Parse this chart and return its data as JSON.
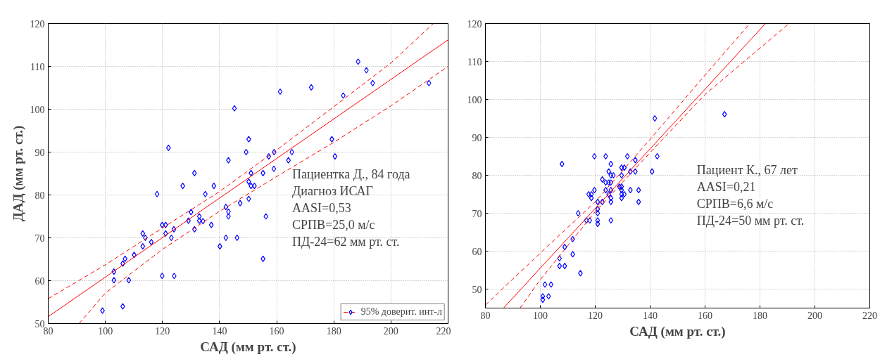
{
  "chart_data": [
    {
      "type": "scatter",
      "xlabel": "САД (мм рт. ст.)",
      "ylabel": "ДАД (мм рт. ст.)",
      "xlim": [
        80,
        220
      ],
      "xticks": [
        80,
        100,
        120,
        140,
        160,
        180,
        200,
        220
      ],
      "ylim": [
        50,
        120
      ],
      "yticks": [
        50,
        60,
        70,
        80,
        90,
        100,
        110,
        120
      ],
      "grid": true,
      "legend": "bottom",
      "marker": "diamond",
      "annotations": [
        "Пациентка Д., 84 года",
        "Диагноз ИСАГ",
        "AASI=0,53",
        "СРПВ=25,0 м/с",
        "ПД-24=62 мм рт. ст."
      ],
      "series": [
        {
          "color": "#0000ff",
          "x": [
            145.2,
            150.2,
            149.3,
            143.1,
            122.1,
            151.0,
            150.2,
            151.0,
            131.2,
            127.1,
            138.0,
            118.1,
            135.0,
            150.2,
            147.2,
            142.2,
            143.1,
            143.1,
            130.0,
            132.9,
            129.1,
            132.9,
            134.2,
            137.1,
            131.2,
            119.9,
            121.1,
            121.1,
            124.0,
            123.1,
            113.1,
            114.0,
            116.1,
            113.1,
            110.1,
            106.9,
            106.1,
            103.0,
            103.0,
            108.2,
            119.9,
            124.1,
            106.1,
            99.0,
            142.2,
            146.1,
            140.1,
            188.5,
            191.4,
            193.6,
            213.3,
            161.2,
            172.1,
            183.3,
            179.3,
            180.4,
            157.2,
            159.1,
            165.3,
            164.1,
            155.2,
            159.0,
            152.2,
            156.2,
            155.2
          ],
          "values": [
            100.2,
            93.0,
            90.0,
            88.1,
            91.0,
            85.1,
            83.1,
            82.1,
            85.1,
            82.1,
            82.1,
            80.2,
            80.2,
            79.1,
            78.1,
            77.2,
            76.1,
            75.0,
            76.0,
            75.0,
            74.0,
            74.0,
            73.9,
            73.0,
            72.0,
            73.0,
            73.0,
            71.0,
            72.0,
            70.0,
            71.0,
            70.0,
            69.0,
            68.0,
            66.0,
            65.1,
            64.0,
            62.1,
            60.1,
            60.1,
            61.1,
            61.1,
            54.0,
            53.0,
            70.0,
            70.0,
            68.0,
            111.1,
            109.1,
            106.1,
            106.1,
            104.1,
            105.1,
            103.2,
            93.0,
            89.0,
            89.0,
            90.0,
            90.0,
            88.1,
            85.1,
            86.1,
            82.1,
            75.0,
            65.1
          ]
        },
        {
          "type": "line",
          "color": "#ff0000",
          "line_style": "solid",
          "marker": "none",
          "x": [
            80,
            220
          ],
          "values": [
            51.6,
            116.2
          ]
        },
        {
          "type": "line",
          "name": "95% доверит. инт-л",
          "color": "#ff0000",
          "line_style": "dashed",
          "marker": "none",
          "x": [
            80,
            100,
            120,
            140,
            160,
            180,
            200,
            214.8
          ],
          "values": [
            55.8,
            63.7,
            72.3,
            80.8,
            90.5,
            100.6,
            110.8,
            120
          ]
        },
        {
          "type": "line",
          "color": "#ff0000",
          "line_style": "dashed",
          "marker": "none",
          "x": [
            90.8,
            100,
            120,
            140,
            160,
            180,
            200,
            220
          ],
          "values": [
            50,
            57.1,
            67.3,
            76.2,
            84.3,
            92.3,
            100.8,
            110
          ]
        }
      ]
    },
    {
      "type": "scatter",
      "xlabel": "САД (мм рт. ст.)",
      "xlim": [
        80,
        220
      ],
      "xticks": [
        80,
        100,
        120,
        140,
        160,
        180,
        200,
        220
      ],
      "ylim": [
        45,
        120
      ],
      "yticks": [
        50,
        60,
        70,
        80,
        90,
        100,
        110,
        120
      ],
      "grid": true,
      "marker": "diamond",
      "annotations": [
        "Пациент К., 67 лет",
        "AASI=0,21",
        "СРПВ=6,6 м/с",
        "ПД-24=50 мм рт. ст."
      ],
      "series": [
        {
          "color": "#0000ff",
          "x": [
            141.7,
            107.9,
            119.7,
            123.8,
            131.7,
            134.6,
            142.6,
            125.7,
            124.9,
            125.7,
            126.6,
            129.6,
            130.6,
            129.6,
            132.8,
            134.6,
            140.7,
            122.6,
            123.8,
            124.9,
            125.7,
            128.8,
            129.6,
            119.7,
            123.8,
            125.7,
            129.6,
            132.8,
            135.8,
            117.6,
            118.6,
            118.6,
            124.9,
            129.6,
            130.6,
            125.7,
            129.6,
            120.9,
            122.6,
            125.7,
            135.8,
            120.9,
            120.9,
            113.8,
            116.8,
            118.0,
            120.9,
            120.9,
            125.7,
            111.8,
            108.9,
            111.8,
            107.0,
            107.0,
            108.9,
            114.6,
            101.7,
            103.9,
            100.9,
            103.0,
            100.9,
            167.1
          ],
          "values": [
            95.0,
            83.0,
            85.0,
            85.0,
            85.0,
            84.0,
            85.0,
            83.0,
            81.0,
            80.0,
            80.0,
            82.0,
            82.0,
            80.0,
            81.0,
            81.0,
            81.0,
            78.9,
            78.1,
            78.1,
            78.1,
            77.0,
            77.0,
            76.1,
            76.1,
            76.1,
            76.1,
            76.1,
            76.1,
            75.0,
            75.0,
            74.0,
            75.0,
            75.0,
            75.0,
            74.0,
            74.0,
            73.0,
            73.0,
            73.0,
            73.0,
            71.1,
            70.0,
            70.0,
            68.1,
            68.1,
            68.1,
            67.2,
            68.1,
            63.2,
            61.1,
            59.2,
            58.1,
            56.1,
            56.1,
            54.2,
            51.2,
            51.2,
            48.1,
            48.1,
            47.2,
            96.1
          ]
        },
        {
          "type": "line",
          "color": "#ff0000",
          "line_style": "solid",
          "marker": "none",
          "x": [
            86.6,
            182
          ],
          "values": [
            45,
            120
          ]
        },
        {
          "type": "line",
          "color": "#ff0000",
          "line_style": "dashed",
          "marker": "none",
          "x": [
            80,
            100,
            120,
            140,
            160,
            176.3
          ],
          "values": [
            45.8,
            59.5,
            73.0,
            89.5,
            106.4,
            120
          ]
        },
        {
          "type": "line",
          "color": "#ff0000",
          "line_style": "dashed",
          "marker": "none",
          "x": [
            92.6,
            100,
            120,
            140,
            160,
            190.6
          ],
          "values": [
            45,
            52.5,
            70.4,
            86.0,
            101.3,
            120
          ]
        }
      ]
    }
  ]
}
